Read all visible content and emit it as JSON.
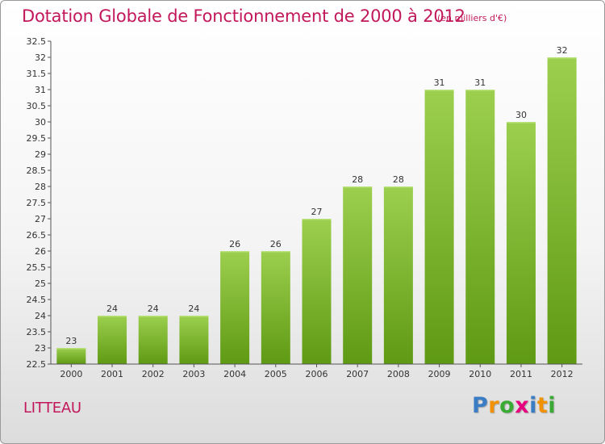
{
  "title": "Dotation Globale de Fonctionnement de 2000 à 2012",
  "unit_note": "(en milliers d'€)",
  "commune": "LITTEAU",
  "brand": {
    "letters": [
      "P",
      "r",
      "o",
      "x",
      "i",
      "t",
      "i"
    ],
    "colors": [
      "#3b7dc4",
      "#f39200",
      "#3aaa35",
      "#e6007e",
      "#3b7dc4",
      "#f39200",
      "#3aaa35"
    ]
  },
  "chart_data": {
    "type": "bar",
    "categories": [
      "2000",
      "2001",
      "2002",
      "2003",
      "2004",
      "2005",
      "2006",
      "2007",
      "2008",
      "2009",
      "2010",
      "2011",
      "2012"
    ],
    "values": [
      23,
      24,
      24,
      24,
      26,
      26,
      27,
      28,
      28,
      31,
      31,
      30,
      32
    ],
    "ylim": [
      22.5,
      32.5
    ],
    "yticks": [
      "22.5",
      "23",
      "23.5",
      "24",
      "24.5",
      "25",
      "25.5",
      "26",
      "26.5",
      "27",
      "27.5",
      "28",
      "28.5",
      "29",
      "29.5",
      "30",
      "30.5",
      "31",
      "31.5",
      "32",
      "32.5"
    ],
    "grid": false,
    "bar_color_top": "#9ccf4e",
    "bar_color_bottom": "#5f9a14"
  }
}
